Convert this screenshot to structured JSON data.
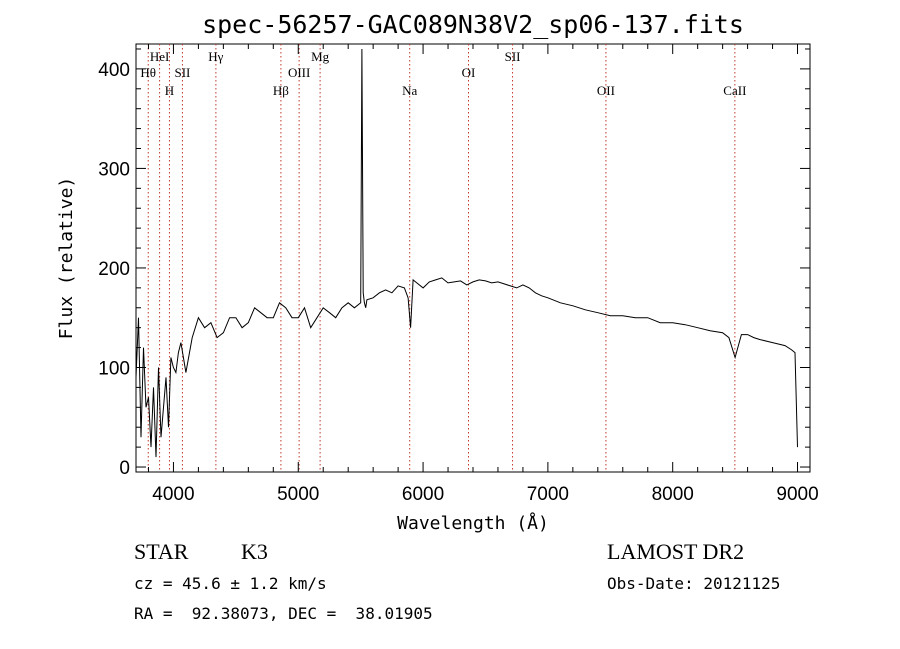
{
  "chart_data": {
    "type": "line",
    "title": "spec-56257-GAC089N38V2_sp06-137.fits",
    "xlabel": "Wavelength (Å)",
    "ylabel": "Flux (relative)",
    "xlim": [
      3700,
      9100
    ],
    "ylim": [
      -5,
      425
    ],
    "x_ticks": [
      4000,
      5000,
      6000,
      7000,
      8000,
      9000
    ],
    "y_ticks": [
      0,
      100,
      200,
      300,
      400
    ],
    "line_color": "#000000",
    "marker_color": "#c0392b",
    "spectral_lines": [
      {
        "label": "Hθ",
        "wavelength": 3798,
        "row": 2
      },
      {
        "label": "HeI",
        "wavelength": 3889,
        "row": 1
      },
      {
        "label": "H",
        "wavelength": 3968,
        "row": 3
      },
      {
        "label": "SII",
        "wavelength": 4072,
        "row": 2
      },
      {
        "label": "Hγ",
        "wavelength": 4340,
        "row": 1
      },
      {
        "label": "Hβ",
        "wavelength": 4861,
        "row": 3
      },
      {
        "label": "OIII",
        "wavelength": 5007,
        "row": 2
      },
      {
        "label": "Mg",
        "wavelength": 5175,
        "row": 1
      },
      {
        "label": "Na",
        "wavelength": 5893,
        "row": 3
      },
      {
        "label": "OI",
        "wavelength": 6364,
        "row": 2
      },
      {
        "label": "SII",
        "wavelength": 6717,
        "row": 1
      },
      {
        "label": "OII",
        "wavelength": 7465,
        "row": 3
      },
      {
        "label": "CaII",
        "wavelength": 8498,
        "row": 3
      }
    ],
    "series": [
      {
        "x": [
          3700,
          3720,
          3740,
          3760,
          3780,
          3800,
          3820,
          3840,
          3860,
          3880,
          3900,
          3920,
          3940,
          3960,
          3980,
          4000,
          4020,
          4040,
          4060,
          4080,
          4100,
          4150,
          4200,
          4250,
          4300,
          4350,
          4400,
          4450,
          4500,
          4550,
          4600,
          4650,
          4700,
          4750,
          4800,
          4850,
          4900,
          4950,
          5000,
          5050,
          5100,
          5150,
          5200,
          5250,
          5300,
          5350,
          5400,
          5450,
          5500,
          5510,
          5520,
          5530,
          5540,
          5550,
          5600,
          5650,
          5700,
          5750,
          5800,
          5850,
          5880,
          5900,
          5920,
          5950,
          6000,
          6050,
          6100,
          6150,
          6200,
          6250,
          6300,
          6350,
          6400,
          6450,
          6500,
          6550,
          6600,
          6650,
          6700,
          6750,
          6800,
          6850,
          6900,
          6950,
          7000,
          7100,
          7200,
          7300,
          7400,
          7500,
          7600,
          7700,
          7800,
          7900,
          8000,
          8100,
          8200,
          8300,
          8400,
          8450,
          8500,
          8550,
          8600,
          8650,
          8700,
          8800,
          8900,
          8950,
          8980,
          9000
        ],
        "y": [
          90,
          150,
          30,
          120,
          60,
          70,
          20,
          80,
          10,
          100,
          30,
          60,
          90,
          40,
          110,
          100,
          95,
          115,
          125,
          110,
          95,
          130,
          150,
          140,
          145,
          130,
          135,
          150,
          150,
          140,
          145,
          160,
          155,
          150,
          150,
          165,
          160,
          150,
          150,
          160,
          140,
          150,
          160,
          155,
          150,
          160,
          165,
          160,
          165,
          420,
          175,
          165,
          160,
          168,
          170,
          175,
          178,
          175,
          182,
          180,
          170,
          140,
          188,
          185,
          180,
          186,
          188,
          190,
          185,
          186,
          187,
          183,
          186,
          188,
          187,
          185,
          186,
          184,
          182,
          180,
          183,
          180,
          175,
          172,
          170,
          165,
          162,
          158,
          155,
          152,
          152,
          150,
          150,
          145,
          145,
          143,
          140,
          137,
          135,
          130,
          110,
          133,
          133,
          130,
          128,
          125,
          122,
          118,
          115,
          20
        ]
      }
    ]
  },
  "info": {
    "object_type": "STAR",
    "subclass": "K3",
    "survey": "LAMOST DR2",
    "cz": "cz = 45.6 ± 1.2 km/s",
    "obs_date": "Obs-Date: 20121125",
    "coords": "RA =  92.38073, DEC =  38.01905"
  }
}
